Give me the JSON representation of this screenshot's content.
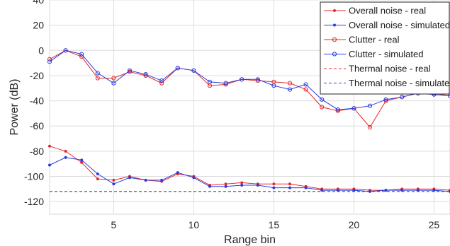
{
  "chart_data": {
    "type": "line",
    "xlabel": "Range bin",
    "ylabel": "Power (dB)",
    "xlim": [
      1,
      26
    ],
    "ylim": [
      -130,
      40
    ],
    "xticks": [
      5,
      10,
      15,
      20,
      25
    ],
    "yticks": [
      40,
      20,
      0,
      -20,
      -40,
      -60,
      -80,
      -100,
      -120
    ],
    "grid": true,
    "legend_position": "top-right",
    "x": [
      1,
      2,
      3,
      4,
      5,
      6,
      7,
      8,
      9,
      10,
      11,
      12,
      13,
      14,
      15,
      16,
      17,
      18,
      19,
      20,
      21,
      22,
      23,
      24,
      25,
      26
    ],
    "series": [
      {
        "name": "Overall noise - real",
        "color": "#e8292c",
        "marker": "dot",
        "dashed": false,
        "values": [
          -76,
          -80,
          -89,
          -102,
          -103,
          -100,
          -103,
          -104,
          -98,
          -100,
          -107,
          -106,
          -105,
          -106,
          -106,
          -106,
          -108,
          -110,
          -110,
          -110,
          -111,
          -111,
          -110,
          -110,
          -110,
          -111
        ]
      },
      {
        "name": "Overall noise - simulated",
        "color": "#2a3bdc",
        "marker": "dot",
        "dashed": false,
        "values": [
          -91,
          -85,
          -87,
          -98,
          -106,
          -101,
          -103,
          -103,
          -97,
          -101,
          -108,
          -108,
          -107,
          -107,
          -109,
          -109,
          -109,
          -111,
          -111,
          -111,
          -112,
          -111,
          -111,
          -111,
          -111,
          -112
        ]
      },
      {
        "name": "Clutter - real",
        "color": "#e8292c",
        "marker": "circle",
        "dashed": false,
        "values": [
          -7,
          0,
          -5,
          -22,
          -22,
          -17,
          -20,
          -26,
          -14,
          -16,
          -28,
          -27,
          -23,
          -24,
          -25,
          -26,
          -31,
          -45,
          -48,
          -46,
          -61,
          -40,
          -37,
          -34,
          -34,
          -36
        ]
      },
      {
        "name": "Clutter - simulated",
        "color": "#2a3bdc",
        "marker": "circle",
        "dashed": false,
        "values": [
          -9,
          0,
          -3,
          -18,
          -26,
          -16,
          -19,
          -24,
          -14,
          -16,
          -25,
          -26,
          -23,
          -23,
          -28,
          -31,
          -27,
          -39,
          -47,
          -46,
          -44,
          -39,
          -37,
          -34,
          -35,
          -36
        ]
      },
      {
        "name": "Thermal noise - real",
        "color": "#e8292c",
        "marker": "none",
        "dashed": true,
        "values": [
          -112,
          -112,
          -112,
          -112,
          -112,
          -112,
          -112,
          -112,
          -112,
          -112,
          -112,
          -112,
          -112,
          -112,
          -112,
          -112,
          -112,
          -112,
          -112,
          -112,
          -112,
          -112,
          -112,
          -112,
          -112,
          -112
        ]
      },
      {
        "name": "Thermal noise - simulated",
        "color": "#2a3bdc",
        "marker": "none",
        "dashed": true,
        "values": [
          -112,
          -112,
          -112,
          -112,
          -112,
          -112,
          -112,
          -112,
          -112,
          -112,
          -112,
          -112,
          -112,
          -112,
          -112,
          -112,
          -112,
          -112,
          -112,
          -112,
          -112,
          -112,
          -112,
          -112,
          -112,
          -112
        ]
      }
    ]
  }
}
